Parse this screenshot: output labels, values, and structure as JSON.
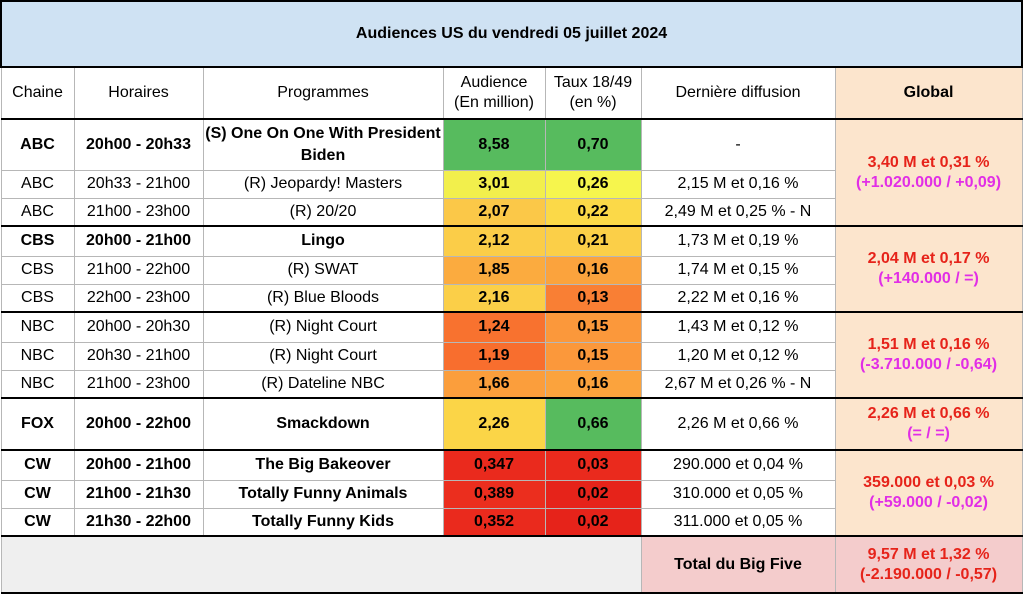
{
  "title": "Audiences US du vendredi 05 juillet 2024",
  "headers": {
    "chaine": "Chaine",
    "horaires": "Horaires",
    "programmes": "Programmes",
    "audience_line1": "Audience",
    "audience_line2": "(En million)",
    "taux_line1": "Taux 18/49",
    "taux_line2": "(en %)",
    "derniere": "Dernière diffusion",
    "global": "Global"
  },
  "rows": [
    {
      "chaine": "ABC",
      "horaires": "20h00 - 20h33",
      "programme": "(S) One On One With President Biden",
      "audience": "8,58",
      "taux": "0,70",
      "derniere": "-",
      "bold": true,
      "audience_color": "#57bb5e",
      "taux_color": "#57bb5e"
    },
    {
      "chaine": "ABC",
      "horaires": "20h33 - 21h00",
      "programme": "(R) Jeopardy! Masters",
      "audience": "3,01",
      "taux": "0,26",
      "derniere": "2,15 M et 0,16 %",
      "bold": false,
      "audience_color": "#f2ef4c",
      "taux_color": "#f6f54d"
    },
    {
      "chaine": "ABC",
      "horaires": "21h00 - 23h00",
      "programme": "(R) 20/20",
      "audience": "2,07",
      "taux": "0,22",
      "derniere": "2,49 M et 0,25 % - N",
      "bold": false,
      "audience_color": "#fbc848",
      "taux_color": "#fbd948"
    },
    {
      "chaine": "CBS",
      "horaires": "20h00 - 21h00",
      "programme": "Lingo",
      "audience": "2,12",
      "taux": "0,21",
      "derniere": "1,73 M et 0,19 %",
      "bold": true,
      "audience_color": "#fbcd48",
      "taux_color": "#fbcf48"
    },
    {
      "chaine": "CBS",
      "horaires": "21h00 - 22h00",
      "programme": "(R) SWAT",
      "audience": "1,85",
      "taux": "0,16",
      "derniere": "1,74 M et 0,15 %",
      "bold": false,
      "audience_color": "#fbab3f",
      "taux_color": "#fba33d"
    },
    {
      "chaine": "CBS",
      "horaires": "22h00 - 23h00",
      "programme": "(R) Blue Bloods",
      "audience": "2,16",
      "taux": "0,13",
      "derniere": "2,22 M et 0,16 %",
      "bold": false,
      "audience_color": "#fbcf48",
      "taux_color": "#f97f34"
    },
    {
      "chaine": "NBC",
      "horaires": "20h00 - 20h30",
      "programme": "(R) Night Court",
      "audience": "1,24",
      "taux": "0,15",
      "derniere": "1,43 M et 0,12 %",
      "bold": false,
      "audience_color": "#f8722f",
      "taux_color": "#fb983b"
    },
    {
      "chaine": "NBC",
      "horaires": "20h30 - 21h00",
      "programme": "(R) Night Court",
      "audience": "1,19",
      "taux": "0,15",
      "derniere": "1,20 M et 0,12 %",
      "bold": false,
      "audience_color": "#f86e2e",
      "taux_color": "#fb983b"
    },
    {
      "chaine": "NBC",
      "horaires": "21h00 - 23h00",
      "programme": "(R) Dateline NBC",
      "audience": "1,66",
      "taux": "0,16",
      "derniere": "2,67 M et 0,26 % - N",
      "bold": false,
      "audience_color": "#fb9e3c",
      "taux_color": "#fba33d"
    },
    {
      "chaine": "FOX",
      "horaires": "20h00 - 22h00",
      "programme": "Smackdown",
      "audience": "2,26",
      "taux": "0,66",
      "derniere": "2,26 M et 0,66 %",
      "bold": true,
      "audience_color": "#fbd547",
      "taux_color": "#57bb5e"
    },
    {
      "chaine": "CW",
      "horaires": "20h00 - 21h00",
      "programme": "The Big Bakeover",
      "audience": "0,347",
      "taux": "0,03",
      "derniere": "290.000 et 0,04 %",
      "bold": true,
      "audience_color": "#ea2a1d",
      "taux_color": "#ea2a1d"
    },
    {
      "chaine": "CW",
      "horaires": "21h00 - 21h30",
      "programme": "Totally Funny Animals",
      "audience": "0,389",
      "taux": "0,02",
      "derniere": "310.000 et 0,05 %",
      "bold": true,
      "audience_color": "#eb2e1e",
      "taux_color": "#e6231a"
    },
    {
      "chaine": "CW",
      "horaires": "21h30 - 22h00",
      "programme": "Totally Funny Kids",
      "audience": "0,352",
      "taux": "0,02",
      "derniere": "311.000 et 0,05 %",
      "bold": true,
      "audience_color": "#ea2a1d",
      "taux_color": "#e6231a"
    }
  ],
  "globals": {
    "abc": {
      "main": "3,40 M et 0,31 %",
      "diff": "(+1.020.000 / +0,09)"
    },
    "cbs": {
      "main": "2,04 M et 0,17 %",
      "diff": "(+140.000 / =)"
    },
    "nbc": {
      "main": "1,51 M et 0,16 %",
      "diff": "(-3.710.000 / -0,64)"
    },
    "fox": {
      "main": "2,26 M et 0,66 %",
      "diff": "(= / =)"
    },
    "cw": {
      "main": "359.000 et 0,03 %",
      "diff": "(+59.000 / -0,02)"
    }
  },
  "total": {
    "label": "Total du Big Five",
    "main": "9,57 M et 1,32 %",
    "diff": "(-2.190.000 / -0,57)"
  }
}
